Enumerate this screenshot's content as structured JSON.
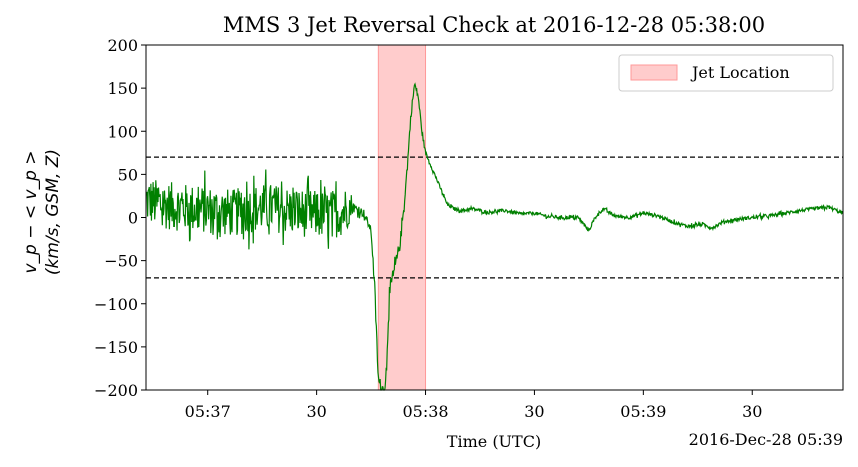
{
  "chart_data": {
    "type": "line",
    "title": "MMS 3 Jet Reversal Check at 2016-12-28 05:38:00",
    "xlabel": "Time (UTC)",
    "x_offset_label": "2016-Dec-28 05:39",
    "ylabel_line1": "v_p − < v_p >",
    "ylabel_line2": "(km/s, GSM, Z)",
    "x_range": [
      "2016-12-28 05:36:43",
      "2016-12-28 05:39:55"
    ],
    "ylim": [
      -200,
      200
    ],
    "yticks": [
      -200,
      -150,
      -100,
      -50,
      0,
      50,
      100,
      150,
      200
    ],
    "yticklabels": [
      "−200",
      "−150",
      "−100",
      "−50",
      "0",
      "50",
      "100",
      "150",
      "200"
    ],
    "xticks": [
      {
        "time": "05:37:00",
        "label": "05:37"
      },
      {
        "time": "05:37:30",
        "label": "30"
      },
      {
        "time": "05:38:00",
        "label": "05:38"
      },
      {
        "time": "05:38:30",
        "label": "30"
      },
      {
        "time": "05:39:00",
        "label": "05:39"
      },
      {
        "time": "05:39:30",
        "label": "30"
      }
    ],
    "thresholds": [
      70,
      -70
    ],
    "jet_region": {
      "start": "05:37:47",
      "end": "05:38:00",
      "label": "Jet Location",
      "color": "#ff9999"
    },
    "legend_position": "top-right",
    "grid": false,
    "series": [
      {
        "color": "#008000",
        "points": [
          [
            "05:36:43",
            20
          ],
          [
            "05:36:47",
            15
          ],
          [
            "05:36:52",
            12
          ],
          [
            "05:36:57",
            10
          ],
          [
            "05:37:02",
            8
          ],
          [
            "05:37:07",
            5
          ],
          [
            "05:37:12",
            10
          ],
          [
            "05:37:17",
            12
          ],
          [
            "05:37:22",
            8
          ],
          [
            "05:37:27",
            5
          ],
          [
            "05:37:31",
            3
          ],
          [
            "05:37:36",
            5
          ],
          [
            "05:37:40",
            12
          ],
          [
            "05:37:43",
            5
          ],
          [
            "05:37:45",
            -15
          ],
          [
            "05:37:46",
            -80
          ],
          [
            "05:37:47",
            -190
          ],
          [
            "05:37:48",
            -200
          ],
          [
            "05:37:49",
            -195
          ],
          [
            "05:37:50",
            -90
          ],
          [
            "05:37:51",
            -70
          ],
          [
            "05:37:52",
            -50
          ],
          [
            "05:37:53",
            -30
          ],
          [
            "05:37:54",
            10
          ],
          [
            "05:37:55",
            60
          ],
          [
            "05:37:56",
            120
          ],
          [
            "05:37:57",
            155
          ],
          [
            "05:37:58",
            140
          ],
          [
            "05:37:59",
            100
          ],
          [
            "05:38:00",
            75
          ],
          [
            "05:38:02",
            55
          ],
          [
            "05:38:04",
            35
          ],
          [
            "05:38:06",
            15
          ],
          [
            "05:38:08",
            10
          ],
          [
            "05:38:10",
            8
          ],
          [
            "05:38:13",
            10
          ],
          [
            "05:38:17",
            6
          ],
          [
            "05:38:22",
            8
          ],
          [
            "05:38:26",
            4
          ],
          [
            "05:38:30",
            5
          ],
          [
            "05:38:34",
            1
          ],
          [
            "05:38:38",
            0
          ],
          [
            "05:38:42",
            0
          ],
          [
            "05:38:45",
            -15
          ],
          [
            "05:38:47",
            2
          ],
          [
            "05:38:49",
            10
          ],
          [
            "05:38:52",
            2
          ],
          [
            "05:38:56",
            0
          ],
          [
            "05:39:00",
            5
          ],
          [
            "05:39:04",
            2
          ],
          [
            "05:39:08",
            -5
          ],
          [
            "05:39:12",
            -10
          ],
          [
            "05:39:16",
            -8
          ],
          [
            "05:39:19",
            -12
          ],
          [
            "05:39:22",
            -5
          ],
          [
            "05:39:26",
            -2
          ],
          [
            "05:39:30",
            0
          ],
          [
            "05:39:35",
            2
          ],
          [
            "05:39:39",
            5
          ],
          [
            "05:39:43",
            8
          ],
          [
            "05:39:47",
            10
          ],
          [
            "05:39:51",
            12
          ],
          [
            "05:39:55",
            5
          ]
        ],
        "noise_amplitude": [
          [
            "05:36:43",
            28
          ],
          [
            "05:37:38",
            28
          ],
          [
            "05:37:40",
            6
          ],
          [
            "05:37:45",
            4
          ],
          [
            "05:37:49",
            12
          ],
          [
            "05:37:54",
            6
          ],
          [
            "05:38:01",
            2
          ],
          [
            "05:39:55",
            2
          ]
        ]
      }
    ]
  }
}
